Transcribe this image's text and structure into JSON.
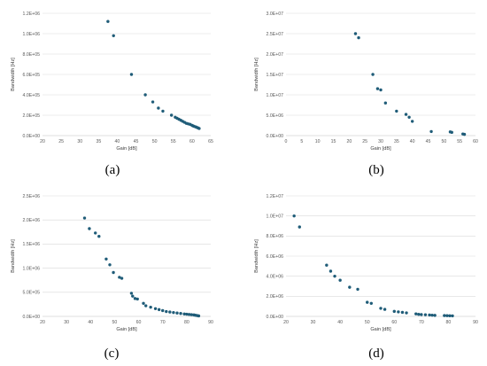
{
  "marker_color": "#1f5c78",
  "grid_color": "#d9d9d9",
  "chart_data": [
    {
      "type": "scatter",
      "panel_label": "(a)",
      "xlabel": "Gain [dB]",
      "ylabel": "Bandwidth [Hz]",
      "xlim": [
        20,
        65
      ],
      "xticks": [
        20,
        25,
        30,
        35,
        40,
        45,
        50,
        55,
        60,
        65
      ],
      "xtick_labels": [
        "20",
        "25",
        "30",
        "35",
        "40",
        "45",
        "50",
        "55",
        "60",
        "65"
      ],
      "ylim": [
        0,
        1200000
      ],
      "yticks": [
        0,
        200000,
        400000,
        600000,
        800000,
        1000000,
        1200000
      ],
      "ytick_labels": [
        "0.0E+00",
        "2.0E+05",
        "4.0E+05",
        "6.0E+05",
        "8.0E+05",
        "1.0E+06",
        "1.2E+06"
      ],
      "grid": true,
      "x": [
        37.5,
        39.0,
        43.8,
        47.5,
        49.5,
        51.0,
        52.2,
        54.5,
        55.5,
        56.0,
        56.5,
        57.0,
        57.5,
        58.0,
        58.5,
        59.0,
        59.5,
        60.0,
        60.3,
        60.6,
        61.0,
        61.3,
        61.6,
        61.9
      ],
      "y": [
        1120000,
        980000,
        600000,
        400000,
        330000,
        270000,
        240000,
        200000,
        180000,
        170000,
        160000,
        150000,
        140000,
        130000,
        120000,
        115000,
        110000,
        100000,
        95000,
        90000,
        85000,
        80000,
        75000,
        70000
      ]
    },
    {
      "type": "scatter",
      "panel_label": "(b)",
      "xlabel": "Gain [dB]",
      "ylabel": "Bandwidth [Hz]",
      "xlim": [
        0,
        60
      ],
      "xticks": [
        0,
        5,
        10,
        15,
        20,
        25,
        30,
        35,
        40,
        45,
        50,
        55,
        60
      ],
      "xtick_labels": [
        "0",
        "5",
        "10",
        "15",
        "20",
        "25",
        "30",
        "35",
        "40",
        "45",
        "50",
        "55",
        "60"
      ],
      "ylim": [
        0,
        30000000
      ],
      "yticks": [
        0,
        5000000,
        10000000,
        15000000,
        20000000,
        25000000,
        30000000
      ],
      "ytick_labels": [
        "0.0E+00",
        "5.0E+06",
        "1.0E+07",
        "1.5E+07",
        "2.0E+07",
        "2.5E+07",
        "3.0E+07"
      ],
      "grid": true,
      "x": [
        22.0,
        23.0,
        27.5,
        29.0,
        30.0,
        31.5,
        35.0,
        38.0,
        39.0,
        40.0,
        46.0,
        52.0,
        52.5,
        56.0,
        56.5
      ],
      "y": [
        25000000,
        24000000,
        15000000,
        11500000,
        11200000,
        8000000,
        6000000,
        5200000,
        4500000,
        3500000,
        1000000,
        900000,
        800000,
        400000,
        300000
      ]
    },
    {
      "type": "scatter",
      "panel_label": "(c)",
      "xlabel": "Gain [dB]",
      "ylabel": "Bandwidth [Hz]",
      "xlim": [
        20,
        90
      ],
      "xticks": [
        20,
        30,
        40,
        50,
        60,
        70,
        80,
        90
      ],
      "xtick_labels": [
        "20",
        "30",
        "40",
        "50",
        "60",
        "70",
        "80",
        "90"
      ],
      "ylim": [
        0,
        2500000
      ],
      "yticks": [
        0,
        500000,
        1000000,
        1500000,
        2000000,
        2500000
      ],
      "ytick_labels": [
        "0.0E+00",
        "5.0E+05",
        "1.0E+06",
        "1.5E+06",
        "2.0E+06",
        "2.5E+06"
      ],
      "grid": true,
      "x": [
        37.5,
        39.5,
        42.0,
        43.5,
        46.5,
        48.0,
        49.5,
        52.0,
        53.0,
        57.0,
        57.5,
        58.5,
        59.5,
        62.0,
        63.0,
        65.0,
        67.0,
        68.5,
        70.0,
        71.5,
        73.0,
        74.5,
        76.0,
        77.5,
        79.0,
        80.0,
        81.0,
        82.0,
        83.0,
        83.5,
        84.0,
        84.5,
        85.0
      ],
      "y": [
        2040000,
        1820000,
        1730000,
        1660000,
        1190000,
        1070000,
        910000,
        810000,
        790000,
        480000,
        420000,
        370000,
        360000,
        270000,
        220000,
        190000,
        160000,
        140000,
        120000,
        100000,
        90000,
        80000,
        70000,
        60000,
        50000,
        45000,
        40000,
        35000,
        30000,
        25000,
        20000,
        15000,
        10000
      ]
    },
    {
      "type": "scatter",
      "panel_label": "(d)",
      "xlabel": "Gain [dB]",
      "ylabel": "Bandwidth [Hz]",
      "xlim": [
        20,
        90
      ],
      "xticks": [
        20,
        30,
        40,
        50,
        60,
        70,
        80,
        90
      ],
      "xtick_labels": [
        "20",
        "30",
        "40",
        "50",
        "60",
        "70",
        "80",
        "90"
      ],
      "ylim": [
        0,
        12000000
      ],
      "yticks": [
        0,
        2000000,
        4000000,
        6000000,
        8000000,
        10000000,
        12000000
      ],
      "ytick_labels": [
        "0.0E+00",
        "2.0E+06",
        "4.0E+06",
        "6.0E+06",
        "8.0E+06",
        "1.0E+07",
        "1.2E+07"
      ],
      "grid": true,
      "x": [
        23.0,
        25.0,
        35.0,
        36.5,
        38.0,
        40.0,
        43.5,
        46.5,
        50.0,
        51.5,
        55.0,
        56.5,
        60.0,
        61.5,
        63.0,
        64.5,
        68.0,
        69.0,
        70.0,
        71.5,
        73.0,
        74.0,
        75.0,
        78.5,
        79.5,
        80.5,
        81.5
      ],
      "y": [
        10000000,
        8900000,
        5100000,
        4500000,
        4000000,
        3600000,
        2900000,
        2700000,
        1400000,
        1300000,
        800000,
        700000,
        500000,
        450000,
        400000,
        350000,
        250000,
        200000,
        180000,
        160000,
        140000,
        120000,
        100000,
        80000,
        70000,
        60000,
        50000
      ]
    }
  ]
}
